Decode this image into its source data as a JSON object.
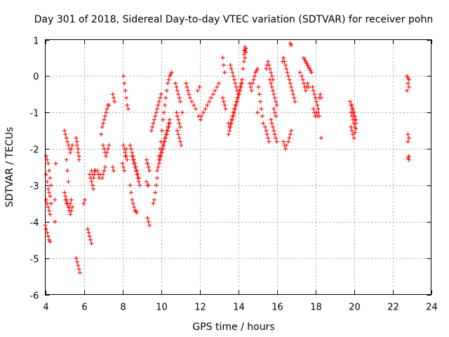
{
  "chart_data": {
    "type": "scatter",
    "title": "Day 301 of 2018, Sidereal Day-to-day VTEC variation (SDTVAR) for receiver pohn",
    "xlabel": "GPS time / hours",
    "ylabel": "SDTVAR / TECUs",
    "xlim": [
      4,
      24
    ],
    "ylim": [
      -6,
      1
    ],
    "x_ticks": [
      4,
      6,
      8,
      10,
      12,
      14,
      16,
      18,
      20,
      22,
      24
    ],
    "y_ticks": [
      -6,
      -5,
      -4,
      -3,
      -2,
      -1,
      0,
      1
    ],
    "x_tick_labels": [
      "4",
      "6",
      "8",
      "10",
      "12",
      "14",
      "16",
      "18",
      "20",
      "22",
      "24"
    ],
    "y_tick_labels": [
      "-6",
      "-5",
      "-4",
      "-3",
      "-2",
      "-1",
      "0",
      "1"
    ],
    "grid": true,
    "marker": "+",
    "color": "#ff0000",
    "series": [
      {
        "name": "SDTVAR",
        "x": [
          4.05,
          4.1,
          4.15,
          4.2,
          4.25,
          4.3,
          4.05,
          4.1,
          4.15,
          4.2,
          4.25,
          4.0,
          4.05,
          4.1,
          4.15,
          4.2,
          4.25,
          4.05,
          4.1,
          4.15,
          4.2,
          4.25,
          4.3,
          4.5,
          4.55,
          4.5,
          5.0,
          5.05,
          5.1,
          5.15,
          5.2,
          5.25,
          5.3,
          5.35,
          5.4,
          5.0,
          5.05,
          5.1,
          5.15,
          5.2,
          5.25,
          5.3,
          5.35,
          5.4,
          5.05,
          5.1,
          5.15,
          5.2,
          5.25,
          5.3,
          5.35,
          5.1,
          5.15,
          5.2,
          5.6,
          5.65,
          5.7,
          5.75,
          5.6,
          5.65,
          5.7,
          5.75,
          5.8,
          5.65,
          5.7,
          5.75,
          6.0,
          6.05,
          6.2,
          6.25,
          6.3,
          6.35,
          6.4,
          6.3,
          6.35,
          6.4,
          6.45,
          6.5,
          6.55,
          6.4,
          6.45,
          6.5,
          6.55,
          6.6,
          6.7,
          6.75,
          6.8,
          6.85,
          6.9,
          6.95,
          7.0,
          7.05,
          7.1,
          7.15,
          7.2,
          7.25,
          7.3,
          7.0,
          7.05,
          7.1,
          7.15,
          7.2,
          7.25,
          7.3,
          6.95,
          7.0,
          7.05,
          7.1,
          7.5,
          7.55,
          7.6,
          7.5,
          7.55,
          8.05,
          8.1,
          8.15,
          8.2,
          8.25,
          8.3,
          8.05,
          8.1,
          8.15,
          8.2,
          8.25,
          8.0,
          8.05,
          8.1,
          8.15,
          8.2,
          8.4,
          8.45,
          8.5,
          8.55,
          8.6,
          8.65,
          8.7,
          8.75,
          8.8,
          8.85,
          8.4,
          8.45,
          8.5,
          8.55,
          8.6,
          8.65,
          8.7,
          8.75,
          8.5,
          8.55,
          8.6,
          8.65,
          8.7,
          8.75,
          8.8,
          8.85,
          8.9,
          9.25,
          9.3,
          9.35,
          9.3,
          9.35,
          9.4,
          9.3,
          9.35,
          9.4,
          9.25,
          9.3,
          9.35,
          9.5,
          9.55,
          9.6,
          9.65,
          9.7,
          9.75,
          9.8,
          9.85,
          9.9,
          9.95,
          10.0,
          9.6,
          9.65,
          9.7,
          9.75,
          9.8,
          9.85,
          9.9,
          9.95,
          10.0,
          10.05,
          10.1,
          10.15,
          10.2,
          10.25,
          10.3,
          10.35,
          10.4,
          10.45,
          10.5,
          10.55,
          9.8,
          9.85,
          9.9,
          9.95,
          10.0,
          10.05,
          10.1,
          10.15,
          10.2,
          10.25,
          10.3,
          10.35,
          10.4,
          10.45,
          9.9,
          9.95,
          10.0,
          10.05,
          10.1,
          10.15,
          10.2,
          10.25,
          10.3,
          10.35,
          10.4,
          10.45,
          10.75,
          10.8,
          10.85,
          10.9,
          10.95,
          11.0,
          10.8,
          10.85,
          10.9,
          10.95,
          11.0,
          10.85,
          10.9,
          10.95,
          11.0,
          11.05,
          11.1,
          11.3,
          11.35,
          11.4,
          11.45,
          11.5,
          11.6,
          11.7,
          11.8,
          11.9,
          12.0,
          11.95,
          12.05,
          12.1,
          12.2,
          12.3,
          12.4,
          12.5,
          12.6,
          12.7,
          12.8,
          12.9,
          13.0,
          13.2,
          13.25,
          13.3,
          13.2,
          13.25,
          13.3,
          13.35,
          13.5,
          13.55,
          13.6,
          13.65,
          13.7,
          13.75,
          13.8,
          13.85,
          13.9,
          13.95,
          14.0,
          14.05,
          14.1,
          14.15,
          14.2,
          13.6,
          13.65,
          13.7,
          13.75,
          13.8,
          13.85,
          13.9,
          13.95,
          14.0,
          13.5,
          13.55,
          13.6,
          13.65,
          13.7,
          13.75,
          13.8,
          13.85,
          13.9,
          13.95,
          14.0,
          14.05,
          14.1,
          14.15,
          14.2,
          14.25,
          14.3,
          14.35,
          14.3,
          14.35,
          14.4,
          14.3,
          14.35,
          14.4,
          14.6,
          14.65,
          14.7,
          14.75,
          14.8,
          14.85,
          14.9,
          14.95,
          15.0,
          15.05,
          15.1,
          15.15,
          15.2,
          15.25,
          15.3,
          15.0,
          15.4,
          15.45,
          15.5,
          15.55,
          15.6,
          15.65,
          15.7,
          15.75,
          15.8,
          15.85,
          15.9,
          15.95,
          16.0,
          15.45,
          15.5,
          15.55,
          15.6,
          15.65,
          15.7,
          15.75,
          15.8,
          15.85,
          15.9,
          15.95,
          15.7,
          15.75,
          15.8,
          15.85,
          15.9,
          15.95,
          16.0,
          16.3,
          16.35,
          16.4,
          16.45,
          16.5,
          16.55,
          16.6,
          16.65,
          16.7,
          16.75,
          16.8,
          16.85,
          16.9,
          16.95,
          16.35,
          16.4,
          16.45,
          16.5,
          16.6,
          16.65,
          16.7,
          16.75,
          16.7,
          16.75,
          17.2,
          17.3,
          17.35,
          17.4,
          17.45,
          17.5,
          17.55,
          17.6,
          17.65,
          17.4,
          17.45,
          17.5,
          17.55,
          17.6,
          17.65,
          17.7,
          17.75,
          17.8,
          17.85,
          17.9,
          17.95,
          18.0,
          18.05,
          18.1,
          18.15,
          18.2,
          18.25,
          18.3,
          17.9,
          17.95,
          18.0,
          18.05,
          18.1,
          18.15,
          18.2,
          18.3,
          19.8,
          19.85,
          19.9,
          19.95,
          20.0,
          20.05,
          20.1,
          19.85,
          19.9,
          19.95,
          20.0,
          20.05,
          20.1,
          19.9,
          19.95,
          20.0,
          20.05,
          20.1,
          19.85,
          19.9,
          19.95,
          20.0,
          20.05,
          22.75,
          22.8,
          22.85,
          22.8,
          22.85,
          22.75,
          22.8,
          22.85,
          22.8,
          22.85,
          22.8,
          22.85
        ],
        "y": [
          -2.2,
          -2.3,
          -2.4,
          -2.6,
          -2.8,
          -3.0,
          -3.4,
          -3.5,
          -3.6,
          -3.7,
          -3.8,
          -4.1,
          -4.2,
          -4.3,
          -4.4,
          -4.5,
          -4.55,
          -2.7,
          -2.9,
          -3.1,
          -3.2,
          -3.3,
          -3.5,
          -3.4,
          -2.4,
          -4.0,
          -1.5,
          -1.6,
          -1.7,
          -1.8,
          -1.9,
          -2.0,
          -2.1,
          -2.0,
          -1.9,
          -3.2,
          -3.3,
          -3.4,
          -3.5,
          -3.6,
          -3.7,
          -3.8,
          -3.7,
          -3.6,
          -3.4,
          -3.5,
          -3.5,
          -3.6,
          -3.6,
          -3.5,
          -3.4,
          -2.3,
          -2.6,
          -2.9,
          -1.7,
          -1.8,
          -2.0,
          -2.2,
          -5.0,
          -5.1,
          -5.2,
          -5.3,
          -5.4,
          -1.9,
          -2.1,
          -2.3,
          -3.5,
          -3.4,
          -4.2,
          -4.3,
          -4.4,
          -4.5,
          -4.6,
          -2.7,
          -2.8,
          -2.9,
          -3.0,
          -3.1,
          -2.6,
          -2.6,
          -2.7,
          -2.8,
          -2.7,
          -2.6,
          -2.6,
          -2.7,
          -2.8,
          -2.7,
          -1.6,
          -1.4,
          -1.3,
          -1.2,
          -1.1,
          -1.0,
          -0.9,
          -0.8,
          -0.8,
          -1.9,
          -2.0,
          -2.1,
          -2.2,
          -2.1,
          -2.0,
          -1.9,
          -2.8,
          -2.7,
          -2.6,
          -2.5,
          -0.5,
          -0.6,
          -0.7,
          -2.5,
          -2.6,
          0.0,
          -0.2,
          -0.4,
          -0.6,
          -0.8,
          -0.9,
          -1.9,
          -2.0,
          -2.1,
          -2.2,
          -2.3,
          -2.4,
          -2.5,
          -2.6,
          -2.2,
          -2.0,
          -1.9,
          -2.0,
          -2.1,
          -2.2,
          -2.3,
          -2.4,
          -2.5,
          -2.6,
          -2.7,
          -2.8,
          -3.0,
          -3.2,
          -3.4,
          -3.5,
          -3.6,
          -3.7,
          -3.7,
          -3.75,
          -2.2,
          -2.3,
          -2.4,
          -2.5,
          -2.6,
          -2.7,
          -2.8,
          -2.9,
          -3.0,
          -2.9,
          -3.0,
          -3.0,
          -3.9,
          -4.0,
          -4.1,
          -2.4,
          -2.5,
          -2.6,
          -2.3,
          -2.4,
          -2.5,
          -1.5,
          -1.4,
          -1.3,
          -1.2,
          -1.1,
          -1.0,
          -0.9,
          -0.8,
          -0.7,
          -0.6,
          -0.5,
          -3.5,
          -3.4,
          -3.2,
          -3.0,
          -2.8,
          -2.5,
          -2.2,
          -2.0,
          -1.8,
          -1.5,
          -1.2,
          -1.0,
          -0.8,
          -0.6,
          -0.4,
          -0.2,
          -0.1,
          0.0,
          0.05,
          0.1,
          -2.6,
          -2.5,
          -2.4,
          -2.3,
          -2.2,
          -2.1,
          -2.0,
          -1.9,
          -1.8,
          -1.7,
          -1.6,
          -1.5,
          -1.4,
          -1.3,
          -2.3,
          -2.2,
          -2.1,
          -2.0,
          -1.9,
          -1.8,
          -1.7,
          -1.6,
          -1.5,
          -1.4,
          -1.3,
          -1.2,
          -0.2,
          -0.3,
          -0.4,
          -0.5,
          -0.6,
          -0.7,
          -1.0,
          -1.1,
          -1.2,
          -1.3,
          -1.4,
          -1.5,
          -1.6,
          -1.7,
          -1.8,
          -1.9,
          -1.0,
          -0.2,
          -0.3,
          -0.4,
          -0.5,
          -0.6,
          -0.7,
          -0.8,
          -0.9,
          -0.4,
          -0.3,
          -1.1,
          -1.2,
          -1.1,
          -1.0,
          -0.9,
          -0.8,
          -0.7,
          -0.6,
          -0.5,
          -0.4,
          -0.3,
          -0.2,
          0.5,
          0.3,
          0.1,
          -0.6,
          -0.7,
          -0.8,
          -0.9,
          -1.3,
          -1.4,
          -1.3,
          -1.2,
          -1.1,
          -1.0,
          -0.9,
          -0.8,
          -0.7,
          -0.6,
          -0.5,
          -0.4,
          -0.3,
          -0.2,
          -0.1,
          0.3,
          0.2,
          0.1,
          0.0,
          -0.1,
          -0.2,
          -0.3,
          -0.4,
          -0.5,
          -1.6,
          -1.5,
          -1.4,
          -1.3,
          -1.2,
          -1.1,
          -1.0,
          -0.9,
          -0.8,
          -0.7,
          -0.6,
          -0.5,
          -0.4,
          -0.3,
          -0.2,
          0.2,
          0.4,
          0.5,
          0.7,
          0.8,
          0.75,
          0.6,
          0.7,
          0.65,
          -0.2,
          -0.3,
          -0.4,
          -0.2,
          -0.1,
          0.0,
          0.1,
          0.15,
          0.2,
          -0.3,
          -0.5,
          -0.7,
          -0.9,
          -1.1,
          -1.3,
          -1.0,
          -1.4,
          -1.5,
          -1.6,
          -1.7,
          -1.8,
          -0.1,
          -0.2,
          -0.3,
          -0.4,
          -0.5,
          -0.6,
          -0.7,
          -0.8,
          0.2,
          0.3,
          0.4,
          0.3,
          0.2,
          0.1,
          0.0,
          -0.1,
          -0.9,
          -1.0,
          -1.1,
          -1.2,
          -1.3,
          -1.4,
          -1.5,
          -1.6,
          -1.7,
          -1.8,
          0.4,
          0.5,
          0.4,
          0.3,
          0.2,
          0.1,
          0.0,
          -0.1,
          -0.2,
          -0.3,
          -0.4,
          -0.5,
          -0.6,
          -0.7,
          -1.8,
          -1.9,
          -2.0,
          -1.9,
          -1.8,
          -1.7,
          -1.6,
          -1.5,
          0.9,
          0.85,
          0.1,
          0.0,
          -0.1,
          -0.2,
          -0.3,
          -0.4,
          -0.3,
          -0.2,
          -0.3,
          0.5,
          0.45,
          0.4,
          0.35,
          0.3,
          0.25,
          0.2,
          0.15,
          0.1,
          -0.3,
          -0.4,
          -0.5,
          -0.6,
          -0.7,
          -0.8,
          -0.9,
          -0.6,
          -0.5,
          -0.6,
          -0.9,
          -1.0,
          -1.1,
          -1.0,
          -1.1,
          -1.0,
          -1.1,
          -1.7,
          -0.7,
          -0.8,
          -0.9,
          -1.0,
          -1.1,
          -1.2,
          -1.3,
          -1.4,
          -1.5,
          -1.6,
          -1.7,
          -1.55,
          -1.45,
          -0.8,
          -0.9,
          -1.0,
          -1.1,
          -1.2,
          -1.0,
          -1.1,
          -1.2,
          -1.3,
          -1.4,
          0.0,
          -0.05,
          -0.1,
          -0.2,
          -0.3,
          -0.4,
          -1.6,
          -1.7,
          -1.8,
          -2.2,
          -2.25,
          -2.3
        ]
      }
    ]
  }
}
